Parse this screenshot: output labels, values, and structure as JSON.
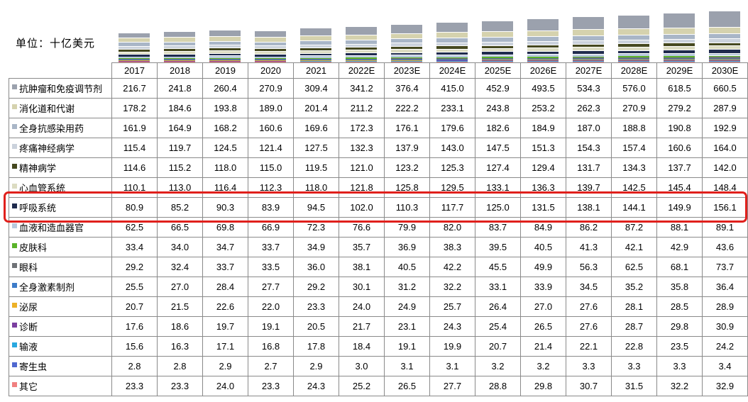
{
  "unit_label": "单位：十亿美元",
  "highlight": {
    "series": "呼吸系统",
    "color": "#e0201c"
  },
  "chart_data": {
    "type": "bar",
    "stacked": true,
    "title": "",
    "unit": "十亿美元",
    "legend_position": "table-row-labels",
    "categories": [
      "2017",
      "2018",
      "2019",
      "2020",
      "2021",
      "2022E",
      "2023E",
      "2024E",
      "2025E",
      "2026E",
      "2027E",
      "2028E",
      "2029E",
      "2030E"
    ],
    "series": [
      {
        "name": "抗肿瘤和免疫调节剂",
        "color": "#9ba1ad",
        "values": [
          216.7,
          241.8,
          260.4,
          270.9,
          309.4,
          341.2,
          376.4,
          415.0,
          452.9,
          493.5,
          534.3,
          576.0,
          618.5,
          660.5
        ]
      },
      {
        "name": "消化道和代谢",
        "color": "#d5d2ae",
        "values": [
          178.2,
          184.6,
          193.8,
          189.0,
          201.4,
          211.2,
          222.2,
          233.1,
          243.8,
          253.2,
          262.3,
          270.9,
          279.2,
          287.9
        ]
      },
      {
        "name": "全身抗感染用药",
        "color": "#a9b6c7",
        "values": [
          161.9,
          164.9,
          168.2,
          160.6,
          169.6,
          172.3,
          176.1,
          179.6,
          182.6,
          184.9,
          187.0,
          188.8,
          190.8,
          192.9
        ]
      },
      {
        "name": "疼痛神经病学",
        "color": "#cbd2dc",
        "values": [
          115.4,
          119.7,
          124.5,
          121.4,
          127.5,
          132.3,
          137.9,
          143.0,
          147.5,
          151.3,
          154.3,
          157.4,
          160.6,
          164.0
        ]
      },
      {
        "name": "精神病学",
        "color": "#45481f",
        "values": [
          114.6,
          115.2,
          118.0,
          115.0,
          119.5,
          121.0,
          123.2,
          125.3,
          127.4,
          129.4,
          131.7,
          134.3,
          137.7,
          142.0
        ]
      },
      {
        "name": "心血管系统",
        "color": "#dcdcc2",
        "values": [
          110.1,
          113.0,
          116.4,
          112.3,
          118.0,
          121.8,
          125.8,
          129.5,
          133.1,
          136.3,
          139.7,
          142.5,
          145.4,
          148.4
        ]
      },
      {
        "name": "呼吸系统",
        "color": "#1f2b4d",
        "values": [
          80.9,
          85.2,
          90.3,
          83.9,
          94.5,
          102.0,
          110.3,
          117.7,
          125.0,
          131.5,
          138.1,
          144.1,
          149.9,
          156.1
        ]
      },
      {
        "name": "血液和造血器官",
        "color": "#b9cade",
        "values": [
          62.5,
          66.5,
          69.8,
          66.9,
          72.3,
          76.6,
          79.9,
          82.0,
          83.7,
          84.9,
          86.2,
          87.2,
          88.1,
          89.1
        ]
      },
      {
        "name": "皮肤科",
        "color": "#5ab32a",
        "values": [
          33.4,
          34.0,
          34.7,
          33.7,
          34.9,
          35.7,
          36.9,
          38.3,
          39.5,
          40.5,
          41.3,
          42.1,
          42.9,
          43.6
        ]
      },
      {
        "name": "眼科",
        "color": "#6f7277",
        "values": [
          29.2,
          32.4,
          33.7,
          33.5,
          36.0,
          38.1,
          40.5,
          42.2,
          45.5,
          49.9,
          56.3,
          62.5,
          68.1,
          73.7
        ]
      },
      {
        "name": "全身激素制剂",
        "color": "#3d7cc9",
        "values": [
          25.5,
          27.0,
          28.4,
          27.7,
          29.2,
          30.1,
          31.2,
          32.2,
          33.1,
          33.9,
          34.5,
          35.2,
          35.8,
          36.4
        ]
      },
      {
        "name": "泌尿",
        "color": "#edb127",
        "values": [
          20.7,
          21.5,
          22.6,
          22.0,
          23.3,
          24.0,
          24.9,
          25.7,
          26.4,
          27.0,
          27.6,
          28.1,
          28.5,
          28.9
        ]
      },
      {
        "name": "诊断",
        "color": "#7b3fa0",
        "values": [
          17.6,
          18.6,
          19.7,
          19.1,
          20.5,
          21.7,
          23.1,
          24.3,
          25.4,
          26.5,
          27.6,
          28.7,
          29.8,
          30.9
        ]
      },
      {
        "name": "输液",
        "color": "#29a8e0",
        "values": [
          15.6,
          16.3,
          17.1,
          16.8,
          17.8,
          18.4,
          19.1,
          19.9,
          20.7,
          21.4,
          22.1,
          22.8,
          23.5,
          24.2
        ]
      },
      {
        "name": "寄生虫",
        "color": "#5068d0",
        "values": [
          2.8,
          2.8,
          2.9,
          2.7,
          2.9,
          3.0,
          3.1,
          3.1,
          3.2,
          3.2,
          3.3,
          3.3,
          3.3,
          3.4
        ]
      },
      {
        "name": "其它",
        "color": "#f08080",
        "values": [
          23.3,
          23.3,
          24.0,
          23.3,
          24.3,
          25.2,
          26.5,
          27.7,
          28.8,
          29.8,
          30.7,
          31.5,
          32.2,
          32.9
        ]
      }
    ]
  }
}
